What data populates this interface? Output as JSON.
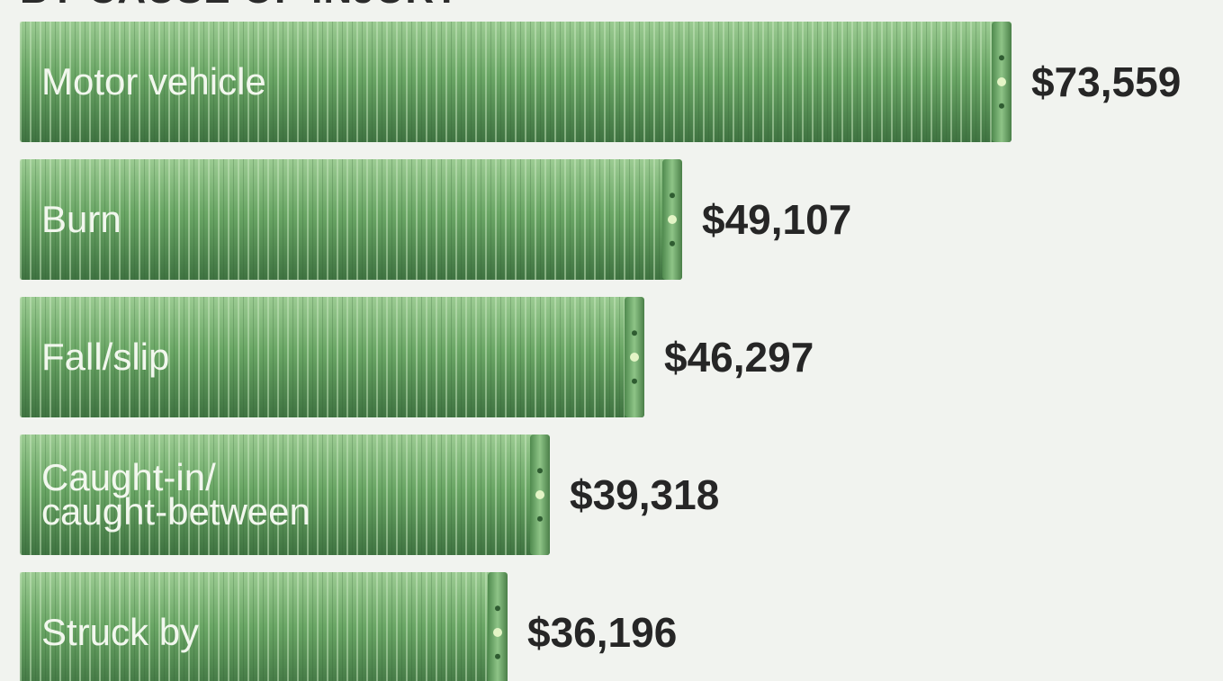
{
  "chart_data": {
    "type": "bar",
    "orientation": "horizontal",
    "title": "BY CAUSE OF INJURY",
    "categories": [
      [
        "Motor vehicle"
      ],
      [
        "Burn"
      ],
      [
        "Fall/slip"
      ],
      [
        "Caught-in/",
        "caught-between"
      ],
      [
        "Struck by"
      ]
    ],
    "values": [
      73559,
      49107,
      46297,
      39318,
      36196
    ],
    "value_labels": [
      "$73,559",
      "$49,107",
      "$46,297",
      "$39,318",
      "$36,196"
    ],
    "xlim": [
      0,
      73559
    ],
    "grid": false,
    "legend": "none"
  },
  "colors": {
    "bar_fill": "#5f9a5c",
    "bar_light": "#8cc084",
    "bar_dark": "#3f7341",
    "bar_stripe": "#b8dfae",
    "bar_cap": "#7ab274",
    "label_text": "#f2f7ee",
    "value_text": "#262626",
    "background": "#f1f3ef"
  }
}
